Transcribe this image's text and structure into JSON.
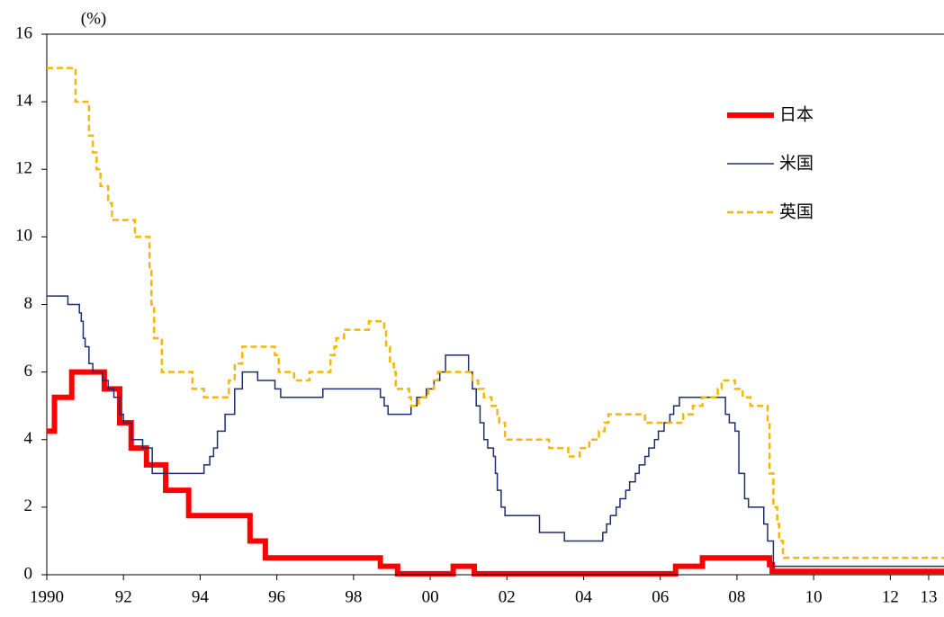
{
  "chart_data": {
    "type": "line",
    "step": "post",
    "y_label": "(%)",
    "xlim": [
      1990,
      2013.4
    ],
    "ylim": [
      0,
      16
    ],
    "xticks": [
      1990,
      {
        "value": 1992,
        "label": "92"
      },
      {
        "value": 1994,
        "label": "94"
      },
      {
        "value": 1996,
        "label": "96"
      },
      {
        "value": 1998,
        "label": "98"
      },
      {
        "value": 2000,
        "label": "00"
      },
      {
        "value": 2002,
        "label": "02"
      },
      {
        "value": 2004,
        "label": "04"
      },
      {
        "value": 2006,
        "label": "06"
      },
      {
        "value": 2008,
        "label": "08"
      },
      {
        "value": 2010,
        "label": "10"
      },
      {
        "value": 2012,
        "label": "12"
      },
      {
        "value": 2013,
        "label": "13"
      }
    ],
    "yticks": [
      0,
      2,
      4,
      6,
      8,
      10,
      12,
      14,
      16
    ],
    "legend": "upper right",
    "series": [
      {
        "name": "日本",
        "color": "#ff0000",
        "width": 6,
        "dash": "none",
        "x": [
          1990,
          1990.2,
          1990.65,
          1991.5,
          1991.9,
          1992.2,
          1992.6,
          1993.1,
          1993.7,
          1995.3,
          1995.7,
          1998.7,
          1999.15,
          2000.6,
          2001.15,
          2006.4,
          2007.1,
          2008.85,
          2008.92,
          2013.4
        ],
        "values": [
          4.25,
          5.25,
          6.0,
          5.5,
          4.5,
          3.75,
          3.25,
          2.5,
          1.75,
          1.0,
          0.5,
          0.25,
          0.03,
          0.25,
          0.03,
          0.25,
          0.5,
          0.3,
          0.1,
          0.1
        ]
      },
      {
        "name": "米国",
        "color": "#1f2d6e",
        "width": 1.5,
        "dash": "none",
        "x": [
          1990,
          1990.55,
          1990.85,
          1990.9,
          1990.95,
          1991.0,
          1991.1,
          1991.2,
          1991.45,
          1991.6,
          1991.75,
          1991.9,
          1992.0,
          1992.2,
          1992.5,
          1992.75,
          1994.1,
          1994.25,
          1994.35,
          1994.45,
          1994.65,
          1994.9,
          1995.1,
          1995.5,
          1995.95,
          1996.1,
          1997.2,
          1998.7,
          1998.8,
          1998.9,
          1999.5,
          1999.65,
          1999.9,
          2000.1,
          2000.25,
          2000.4,
          2001.0,
          2001.1,
          2001.2,
          2001.3,
          2001.4,
          2001.5,
          2001.65,
          2001.7,
          2001.75,
          2001.85,
          2001.95,
          2002.85,
          2003.5,
          2004.5,
          2004.6,
          2004.7,
          2004.85,
          2004.95,
          2005.1,
          2005.2,
          2005.35,
          2005.45,
          2005.6,
          2005.7,
          2005.85,
          2005.95,
          2006.1,
          2006.25,
          2006.35,
          2006.5,
          2007.7,
          2007.8,
          2007.95,
          2008.05,
          2008.2,
          2008.3,
          2008.7,
          2008.8,
          2008.95,
          2013.4
        ],
        "values": [
          8.25,
          8.0,
          7.75,
          7.5,
          7.0,
          6.75,
          6.25,
          6.0,
          5.75,
          5.5,
          5.25,
          4.75,
          4.5,
          4.0,
          3.75,
          3.0,
          3.25,
          3.5,
          3.75,
          4.25,
          4.75,
          5.5,
          6.0,
          5.75,
          5.5,
          5.25,
          5.5,
          5.25,
          5.0,
          4.75,
          5.0,
          5.25,
          5.5,
          5.75,
          6.0,
          6.5,
          6.0,
          5.5,
          5.0,
          4.5,
          4.0,
          3.75,
          3.5,
          3.0,
          2.5,
          2.0,
          1.75,
          1.25,
          1.0,
          1.25,
          1.5,
          1.75,
          2.0,
          2.25,
          2.5,
          2.75,
          3.0,
          3.25,
          3.5,
          3.75,
          4.0,
          4.25,
          4.5,
          4.75,
          5.0,
          5.25,
          4.75,
          4.5,
          4.25,
          3.0,
          2.25,
          2.0,
          1.5,
          1.0,
          0.25,
          0.25
        ]
      },
      {
        "name": "英国",
        "color": "#f5b50a",
        "width": 2.5,
        "dash": "7,4",
        "x": [
          1990,
          1990.75,
          1991.1,
          1991.2,
          1991.3,
          1991.4,
          1991.6,
          1991.7,
          1992.3,
          1992.68,
          1992.73,
          1992.8,
          1993.0,
          1993.8,
          1994.1,
          1994.75,
          1994.9,
          1995.1,
          1995.95,
          1996.05,
          1996.45,
          1996.85,
          1997.4,
          1997.5,
          1997.55,
          1997.75,
          1998.4,
          1998.8,
          1998.85,
          1998.95,
          1999.05,
          1999.1,
          1999.45,
          1999.5,
          1999.7,
          1999.95,
          2000.1,
          2000.2,
          2001.1,
          2001.25,
          2001.4,
          2001.6,
          2001.75,
          2001.8,
          2001.95,
          2003.1,
          2003.6,
          2003.9,
          2004.15,
          2004.4,
          2004.55,
          2004.65,
          2005.6,
          2006.6,
          2006.85,
          2007.1,
          2007.5,
          2007.6,
          2007.95,
          2008.15,
          2008.35,
          2008.8,
          2008.85,
          2008.95,
          2009.05,
          2009.1,
          2009.2,
          2013.4
        ],
        "values": [
          15.0,
          14.0,
          13.0,
          12.5,
          12.0,
          11.5,
          11.0,
          10.5,
          10.0,
          9.0,
          8.0,
          7.0,
          6.0,
          5.5,
          5.25,
          5.75,
          6.25,
          6.75,
          6.5,
          6.0,
          5.75,
          6.0,
          6.5,
          6.75,
          7.0,
          7.25,
          7.5,
          7.25,
          6.75,
          6.25,
          6.0,
          5.5,
          5.25,
          5.0,
          5.25,
          5.5,
          5.75,
          6.0,
          5.75,
          5.5,
          5.25,
          5.0,
          4.75,
          4.5,
          4.0,
          3.75,
          3.5,
          3.75,
          4.0,
          4.25,
          4.5,
          4.75,
          4.5,
          4.75,
          5.0,
          5.25,
          5.5,
          5.75,
          5.5,
          5.25,
          5.0,
          4.5,
          3.0,
          2.0,
          1.5,
          1.0,
          0.5,
          0.5
        ]
      }
    ]
  }
}
